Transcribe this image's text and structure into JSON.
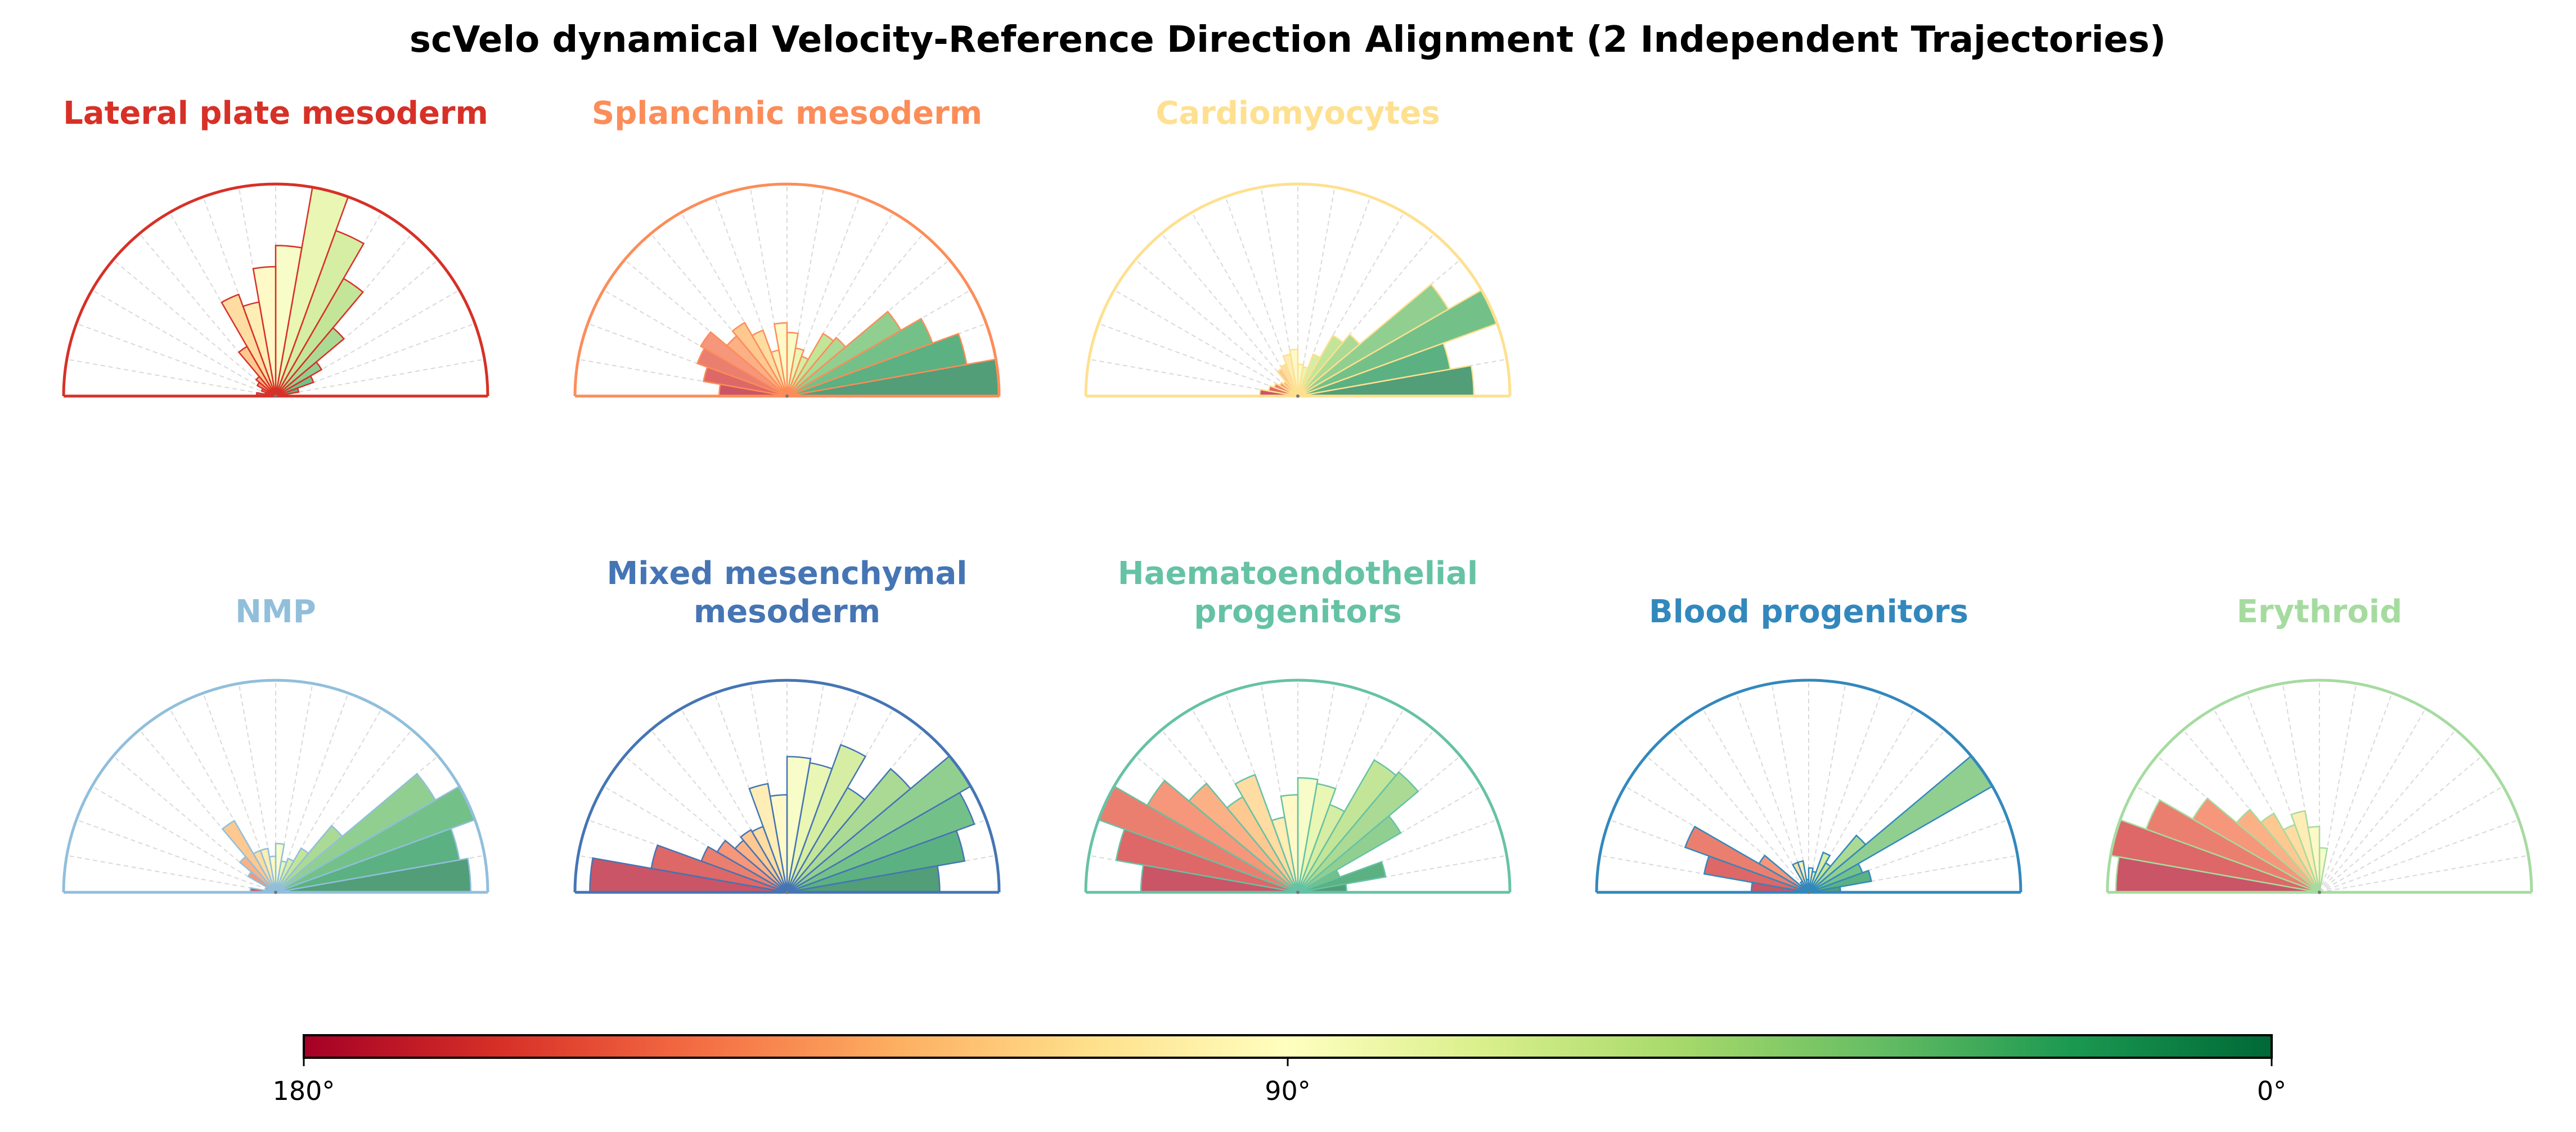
{
  "chart_data": {
    "type": "polar-bar",
    "title": "scVelo dynamical Velocity-Reference Direction Alignment (2 Independent Trajectories)",
    "angle_range_deg": [
      0,
      180
    ],
    "bin_width_deg": 10,
    "bins_deg": [
      0,
      10,
      20,
      30,
      40,
      50,
      60,
      70,
      80,
      90,
      100,
      110,
      120,
      130,
      140,
      150,
      160,
      170
    ],
    "value_units": "relative frequency (normalized to panel max)",
    "colormap": "RdYlGn",
    "colormap_stops": [
      "#a50026",
      "#d73027",
      "#f46d43",
      "#fdae61",
      "#fee08b",
      "#ffffbf",
      "#d9ef8b",
      "#a6d96a",
      "#66bd63",
      "#1a9850",
      "#006837"
    ],
    "colorbar": {
      "ticks": [
        "180°",
        "90°",
        "0°"
      ]
    },
    "panels": [
      {
        "title_lines": [
          "Lateral plate mesoderm"
        ],
        "color": "#d73027",
        "values": [
          0.05,
          0.11,
          0.19,
          0.25,
          0.42,
          0.64,
          0.83,
          1.0,
          0.71,
          0.61,
          0.45,
          0.51,
          0.27,
          0.12,
          0.1,
          0.07,
          0.05,
          0.09
        ]
      },
      {
        "title_lines": [
          "Splanchnic mesoderm"
        ],
        "color": "#fc8d59",
        "values": [
          1.0,
          0.86,
          0.73,
          0.62,
          0.36,
          0.34,
          0.2,
          0.23,
          0.3,
          0.345,
          0.22,
          0.33,
          0.4,
          0.37,
          0.47,
          0.45,
          0.4,
          0.32
        ]
      },
      {
        "title_lines": [
          "Cardiomyocytes"
        ],
        "color": "#fee090",
        "values": [
          0.83,
          0.73,
          1.0,
          0.82,
          0.38,
          0.33,
          0.21,
          0.14,
          0.15,
          0.22,
          0.2,
          0.16,
          0.15,
          0.09,
          0.1,
          0.12,
          0.14,
          0.18
        ]
      },
      {
        "title_lines": [
          "NMP"
        ],
        "color": "#91bfdb",
        "values": [
          0.92,
          0.88,
          1.0,
          0.87,
          0.41,
          0.24,
          0.17,
          0.15,
          0.23,
          0.17,
          0.21,
          0.21,
          0.39,
          0.22,
          0.15,
          0.05,
          0.05,
          0.12
        ]
      },
      {
        "title_lines": [
          "Mixed mesenchymal",
          "mesoderm"
        ],
        "color": "#4575b4",
        "values": [
          0.72,
          0.85,
          0.94,
          1.0,
          0.76,
          0.57,
          0.74,
          0.62,
          0.64,
          0.46,
          0.52,
          0.33,
          0.34,
          0.32,
          0.38,
          0.43,
          0.65,
          0.93
        ]
      },
      {
        "title_lines": [
          "Haematoendothelial",
          "progenitors"
        ],
        "color": "#66c2a5",
        "values": [
          0.23,
          0.42,
          0.21,
          0.56,
          0.74,
          0.72,
          0.44,
          0.52,
          0.54,
          0.46,
          0.36,
          0.59,
          0.52,
          0.67,
          0.82,
          1.0,
          0.87,
          0.74
        ]
      },
      {
        "title_lines": [
          "Blood progenitors"
        ],
        "color": "#3288bd",
        "values": [
          0.15,
          0.3,
          0.27,
          1.0,
          0.35,
          0.16,
          0.2,
          0.1,
          0.115,
          0.06,
          0.15,
          0.15,
          0.06,
          0.05,
          0.27,
          0.62,
          0.5,
          0.27
        ]
      },
      {
        "title_lines": [
          "Erythroid"
        ],
        "color": "#a6dba0",
        "values": [
          0,
          0,
          0,
          0,
          0,
          0,
          0,
          0,
          0.21,
          0.31,
          0.39,
          0.34,
          0.43,
          0.51,
          0.69,
          0.87,
          1.0,
          0.96
        ]
      }
    ]
  }
}
